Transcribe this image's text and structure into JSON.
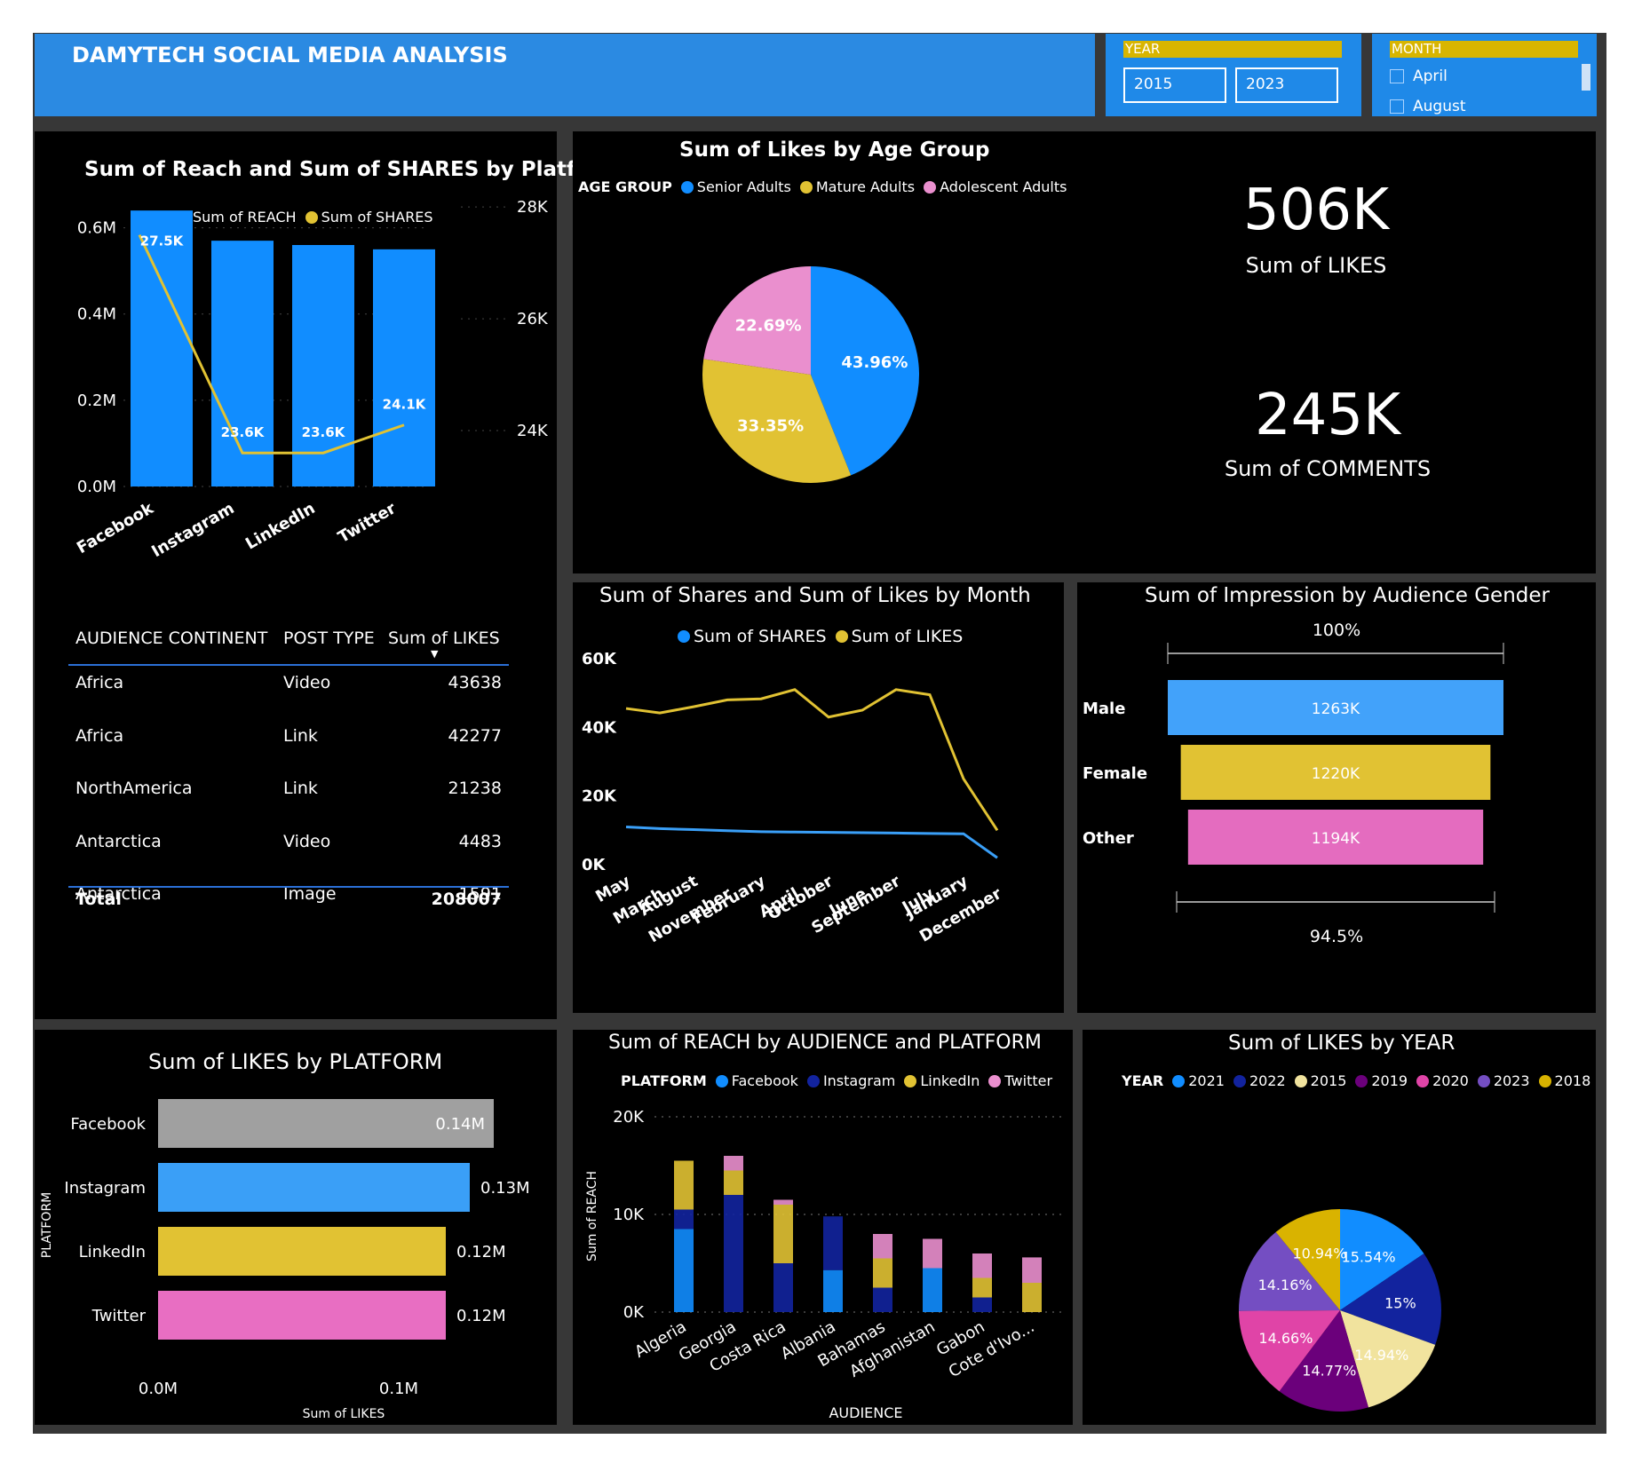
{
  "header": {
    "title": "DAMYTECH SOCIAL MEDIA ANALYSIS"
  },
  "year_slicer": {
    "label": "YEAR",
    "from": "2015",
    "to": "2023"
  },
  "month_slicer": {
    "label": "MONTH",
    "items": [
      "April",
      "August"
    ]
  },
  "colors": {
    "blue": "#118dff",
    "navy": "#12239e",
    "gold": "#e1c233",
    "pink": "#e66c37",
    "pinkish": "#e6a0d8",
    "magenta": "#e044a7",
    "purple": "#6b007b",
    "lavender": "#744ec2",
    "cream": "#f1e39e",
    "darkgold": "#d9b300"
  },
  "reach_shares": {
    "title": "Sum of Reach and Sum of SHARES by Platform",
    "legend": [
      "Sum of REACH",
      "Sum of SHARES"
    ],
    "y_left_ticks": [
      "0.0M",
      "0.2M",
      "0.4M",
      "0.6M"
    ],
    "y_right_ticks": [
      "24K",
      "26K",
      "28K"
    ],
    "chart_data": {
      "type": "bar",
      "categories": [
        "Facebook",
        "Instagram",
        "LinkedIn",
        "Twitter"
      ],
      "series": [
        {
          "name": "Sum of REACH",
          "values": [
            0.64,
            0.57,
            0.56,
            0.55
          ],
          "axis": "left"
        },
        {
          "name": "Sum of SHARES",
          "values": [
            27.5,
            23.6,
            23.6,
            24.1
          ],
          "axis": "right"
        }
      ],
      "share_labels": [
        "27.5K",
        "23.6K",
        "23.6K",
        "24.1K"
      ],
      "ylim": [
        0,
        0.7
      ],
      "y2lim": [
        23,
        28.4
      ]
    }
  },
  "likes_table": {
    "headers": [
      "AUDIENCE CONTINENT",
      "POST TYPE",
      "Sum of LIKES"
    ],
    "rows": [
      {
        "continent": "Africa",
        "type": "Video",
        "likes": "43638"
      },
      {
        "continent": "Africa",
        "type": "Link",
        "likes": "42277"
      },
      {
        "continent": "NorthAmerica",
        "type": "Link",
        "likes": "21238"
      },
      {
        "continent": "Antarctica",
        "type": "Video",
        "likes": "4483"
      },
      {
        "continent": "Antarctica",
        "type": "Image",
        "likes": "1591"
      }
    ],
    "total_label": "Total",
    "total_value": "208007"
  },
  "likes_platform": {
    "title": "Sum of LIKES by PLATFORM",
    "y_axis_title": "PLATFORM",
    "x_axis_title": "Sum of LIKES",
    "x_ticks": [
      "0.0M",
      "0.1M"
    ],
    "chart_data": {
      "type": "bar",
      "orientation": "horizontal",
      "categories": [
        "Facebook",
        "Instagram",
        "LinkedIn",
        "Twitter"
      ],
      "values": [
        0.14,
        0.13,
        0.12,
        0.12
      ],
      "labels": [
        "0.14M",
        "0.13M",
        "0.12M",
        "0.12M"
      ],
      "xlim": [
        0,
        0.14
      ]
    }
  },
  "age_group": {
    "title": "Sum of Likes by Age Group",
    "legend_title": "AGE GROUP",
    "chart_data": {
      "type": "pie",
      "labels": [
        "Senior Adults",
        "Mature Adults",
        "Adolescent Adults"
      ],
      "values": [
        43.96,
        33.35,
        22.69
      ],
      "value_labels": [
        "43.96%",
        "33.35%",
        "22.69%"
      ]
    }
  },
  "kpis": {
    "likes_value": "506K",
    "likes_label": "Sum of LIKES",
    "comments_value": "245K",
    "comments_label": "Sum of COMMENTS"
  },
  "by_month": {
    "title": "Sum of Shares and Sum of Likes by Month",
    "legend": [
      "Sum of SHARES",
      "Sum of LIKES"
    ],
    "y_ticks": [
      "0K",
      "20K",
      "40K",
      "60K"
    ],
    "chart_data": {
      "type": "line",
      "categories": [
        "May",
        "March",
        "August",
        "November",
        "February",
        "April",
        "October",
        "June",
        "September",
        "July",
        "January",
        "December"
      ],
      "series": [
        {
          "name": "Sum of SHARES",
          "values": [
            11,
            10.5,
            10.2,
            9.9,
            9.6,
            9.5,
            9.4,
            9.3,
            9.2,
            9.1,
            9.0,
            2
          ]
        },
        {
          "name": "Sum of LIKES",
          "values": [
            45.5,
            44.2,
            46,
            48,
            48.3,
            51,
            43,
            45,
            51,
            49.5,
            25,
            10
          ]
        }
      ],
      "ylim": [
        0,
        60
      ]
    }
  },
  "gender": {
    "title": "Sum of Impression by Audience Gender",
    "top_pct": "100%",
    "bottom_pct": "94.5%",
    "chart_data": {
      "type": "bar",
      "orientation": "horizontal",
      "categories": [
        "Male",
        "Female",
        "Other"
      ],
      "values": [
        1263,
        1220,
        1194
      ],
      "labels": [
        "1263K",
        "1220K",
        "1194K"
      ]
    }
  },
  "reach_audience": {
    "title": "Sum of REACH by AUDIENCE and PLATFORM",
    "legend_title": "PLATFORM",
    "legend": [
      "Facebook",
      "Instagram",
      "LinkedIn",
      "Twitter"
    ],
    "y_ticks": [
      "0K",
      "10K",
      "20K"
    ],
    "y_axis_title": "Sum of REACH",
    "x_axis_title": "AUDIENCE",
    "chart_data": {
      "type": "bar",
      "stacked": true,
      "categories": [
        "Algeria",
        "Georgia",
        "Costa Rica",
        "Albania",
        "Bahamas",
        "Afghanistan",
        "Gabon",
        "Cote d'Ivo..."
      ],
      "series": [
        {
          "name": "Facebook",
          "values": [
            8.5,
            0,
            0,
            4.3,
            0,
            4.5,
            0,
            0
          ]
        },
        {
          "name": "Instagram",
          "values": [
            2,
            12,
            5,
            5.5,
            2.5,
            0,
            1.5,
            0
          ]
        },
        {
          "name": "LinkedIn",
          "values": [
            5,
            2.5,
            6,
            0,
            3,
            0,
            2,
            3
          ]
        },
        {
          "name": "Twitter",
          "values": [
            0,
            1.5,
            0.5,
            0,
            2.5,
            3,
            2.5,
            2.6
          ]
        }
      ],
      "ylim": [
        0,
        20
      ]
    }
  },
  "likes_year": {
    "title": "Sum of LIKES by YEAR",
    "legend_title": "YEAR",
    "chart_data": {
      "type": "pie",
      "labels": [
        "2021",
        "2022",
        "2015",
        "2019",
        "2020",
        "2023",
        "2018"
      ],
      "values": [
        15.54,
        15,
        14.94,
        14.77,
        14.66,
        14.16,
        10.94
      ],
      "value_labels": [
        "15.54%",
        "15%",
        "14.94%",
        "14.77%",
        "14.66%",
        "14.16%",
        "10.94%"
      ]
    }
  }
}
